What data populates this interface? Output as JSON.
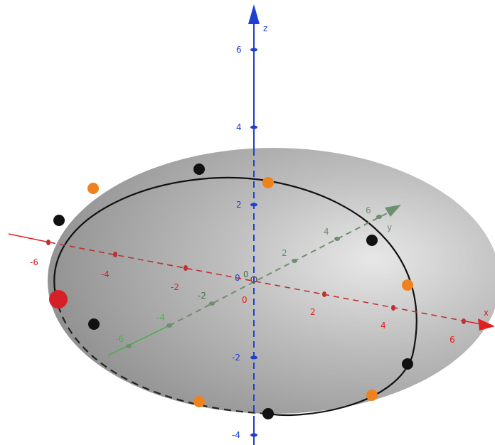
{
  "axes": {
    "x": {
      "name": "x",
      "color": "#e02020",
      "ticks": [
        "-6",
        "-4",
        "-2",
        "2",
        "4",
        "6"
      ]
    },
    "y": {
      "name": "y",
      "color": "#4caf50",
      "ticks": [
        "-6",
        "-4",
        "-2",
        "2",
        "4",
        "6"
      ]
    },
    "z": {
      "name": "z",
      "color": "#1f3fd0",
      "ticks": [
        "6",
        "4",
        "2",
        "-2",
        "-4"
      ]
    },
    "origin_labels": [
      "0",
      "0",
      "0"
    ]
  },
  "surface": {
    "type": "ellipsoid",
    "fill": "#9a9a9a"
  },
  "points": {
    "black_color": "#111111",
    "orange_color": "#f0821e",
    "red_color": "#d61f26"
  }
}
